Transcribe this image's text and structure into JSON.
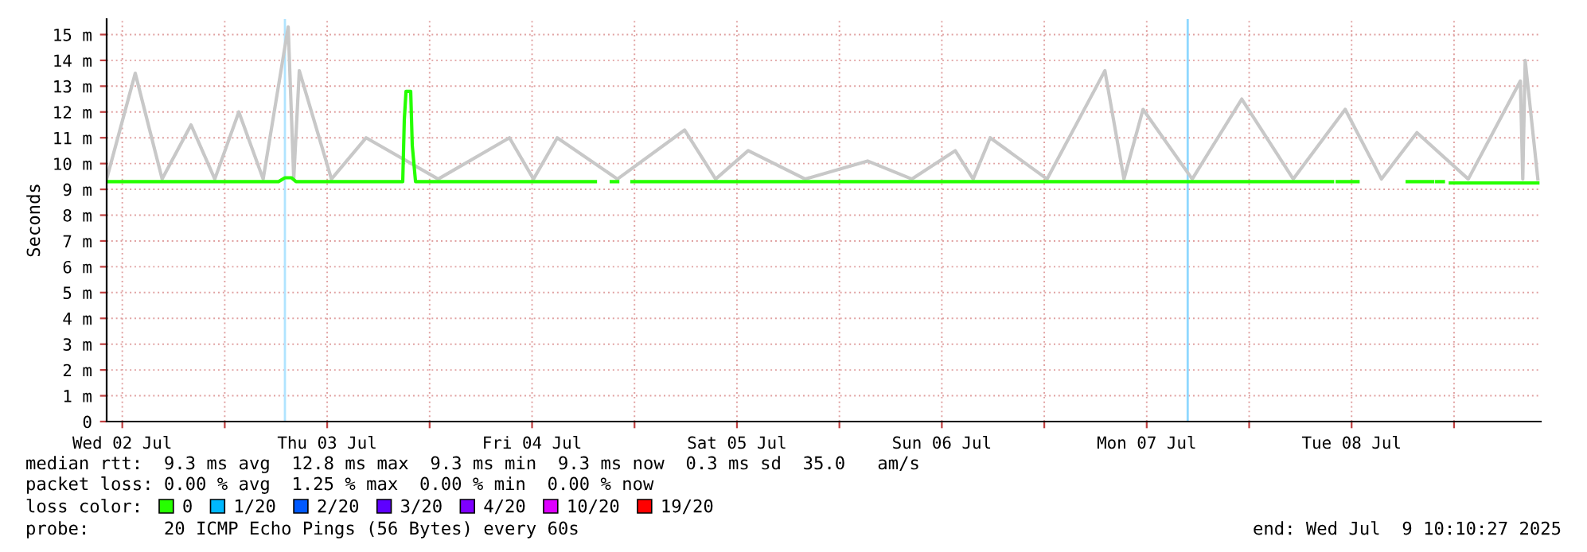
{
  "chart_data": {
    "type": "line",
    "ylabel": "Seconds",
    "xlim": [
      "2025-07-02T10:10",
      "2025-07-09T10:10"
    ],
    "xticks": [
      {
        "value": "2025-07-02T12:00",
        "label": "Wed 02 Jul"
      },
      {
        "value": "2025-07-03T00:00",
        "label": null
      },
      {
        "value": "2025-07-03T12:00",
        "label": "Thu 03 Jul"
      },
      {
        "value": "2025-07-04T00:00",
        "label": null
      },
      {
        "value": "2025-07-04T12:00",
        "label": "Fri 04 Jul"
      },
      {
        "value": "2025-07-05T00:00",
        "label": null
      },
      {
        "value": "2025-07-05T12:00",
        "label": "Sat 05 Jul"
      },
      {
        "value": "2025-07-06T00:00",
        "label": null
      },
      {
        "value": "2025-07-06T12:00",
        "label": "Sun 06 Jul"
      },
      {
        "value": "2025-07-07T00:00",
        "label": null
      },
      {
        "value": "2025-07-07T12:00",
        "label": "Mon 07 Jul"
      },
      {
        "value": "2025-07-08T00:00",
        "label": null
      },
      {
        "value": "2025-07-08T12:00",
        "label": "Tue 08 Jul"
      },
      {
        "value": "2025-07-09T00:00",
        "label": null
      }
    ],
    "ylim": [
      0,
      15.6
    ],
    "yticks": [
      0,
      {
        "value": 1,
        "label": "1 m"
      },
      {
        "value": 2,
        "label": "2 m"
      },
      {
        "value": 3,
        "label": "3 m"
      },
      {
        "value": 4,
        "label": "4 m"
      },
      {
        "value": 5,
        "label": "5 m"
      },
      {
        "value": 6,
        "label": "6 m"
      },
      {
        "value": 7,
        "label": "7 m"
      },
      {
        "value": 8,
        "label": "8 m"
      },
      {
        "value": 9,
        "label": "9 m"
      },
      {
        "value": 10,
        "label": "10 m"
      },
      {
        "value": 11,
        "label": "11 m"
      },
      {
        "value": 12,
        "label": "12 m"
      },
      {
        "value": 13,
        "label": "13 m"
      },
      {
        "value": 14,
        "label": "14 m"
      },
      {
        "value": 15,
        "label": "15 m"
      }
    ],
    "grid": true,
    "legend": "bottom",
    "legend_title": "loss color:",
    "series": [
      {
        "color": "#c8c8c8",
        "x": [
          "2025-07-02T10:10",
          "2025-07-02T13:31",
          "2025-07-02T16:40",
          "2025-07-02T20:03",
          "2025-07-02T22:50",
          "2025-07-03T01:39",
          "2025-07-03T04:30",
          "2025-07-03T07:26",
          "2025-07-03T08:05",
          "2025-07-03T08:44",
          "2025-07-03T12:30",
          "2025-07-03T16:34",
          "2025-07-04T01:00",
          "2025-07-04T09:21",
          "2025-07-04T12:10",
          "2025-07-04T14:57",
          "2025-07-04T22:00",
          "2025-07-05T05:52",
          "2025-07-05T09:30",
          "2025-07-05T13:19",
          "2025-07-05T20:00",
          "2025-07-06T03:18",
          "2025-07-06T08:30",
          "2025-07-06T13:34",
          "2025-07-06T15:40",
          "2025-07-06T17:40",
          "2025-07-07T00:20",
          "2025-07-07T07:06",
          "2025-07-07T09:20",
          "2025-07-07T11:34",
          "2025-07-07T17:20",
          "2025-07-07T23:08",
          "2025-07-08T05:10",
          "2025-07-08T11:15",
          "2025-07-08T15:30",
          "2025-07-08T19:39",
          "2025-07-09T01:40",
          "2025-07-09T07:46",
          "2025-07-09T08:03",
          "2025-07-09T08:20",
          "2025-07-09T09:49"
        ],
        "values": [
          9.4,
          13.5,
          9.4,
          11.5,
          9.4,
          12,
          9.4,
          15.3,
          9.4,
          13.6,
          9.4,
          11,
          9.4,
          11,
          9.4,
          11,
          9.4,
          11.3,
          9.4,
          10.5,
          9.4,
          10.1,
          9.4,
          10.5,
          9.4,
          11,
          9.4,
          13.6,
          9.4,
          12.1,
          9.4,
          12.5,
          9.4,
          12.1,
          9.4,
          11.2,
          9.4,
          13.2,
          9.4,
          14,
          9.4
        ]
      },
      {
        "name": "0",
        "color": "#26ff00",
        "x": [
          "2025-07-02T10:10",
          "2025-07-03T06:18",
          "2025-07-03T07:03",
          "2025-07-03T07:48",
          "2025-07-03T08:21",
          "2025-07-03T20:51",
          "2025-07-03T21:02",
          "2025-07-03T21:14",
          "2025-07-03T21:47",
          "2025-07-03T21:58",
          "2025-07-03T22:21",
          "2025-07-04T19:25",
          "2025-07-04T20:21",
          "2025-07-04T21:17",
          "2025-07-04T22:02",
          "2025-07-04T22:46",
          "2025-07-04T23:42",
          "2025-07-08T09:46",
          "2025-07-08T10:03",
          "2025-07-08T10:19",
          "2025-07-08T12:45",
          "2025-07-08T15:32",
          "2025-07-08T18:31",
          "2025-07-08T21:30",
          "2025-07-08T21:47",
          "2025-07-08T21:58",
          "2025-07-08T22:45",
          "2025-07-08T23:00",
          "2025-07-08T23:34",
          "2025-07-09T09:49"
        ],
        "values": [
          9.3,
          9.3,
          9.45,
          9.45,
          9.3,
          9.3,
          11.7,
          12.8,
          12.8,
          10.7,
          9.3,
          9.3,
          null,
          9.3,
          9.3,
          null,
          9.3,
          9.3,
          null,
          9.3,
          9.3,
          null,
          9.3,
          9.3,
          null,
          9.3,
          9.3,
          null,
          9.25,
          9.25
        ]
      },
      {
        "name": "1/20",
        "color": "#00b8ff"
      },
      {
        "name": "2/20",
        "color": "#0059ff"
      },
      {
        "name": "3/20",
        "color": "#5e00ff"
      },
      {
        "name": "4/20",
        "color": "#7e00ff"
      },
      {
        "name": "10/20",
        "color": "#dd00ff"
      },
      {
        "name": "19/20",
        "color": "#ff0000"
      }
    ],
    "ref_lines": [
      {
        "axis": "x",
        "value": "2025-07-03T07:03",
        "color": "#b0e4ff"
      },
      {
        "axis": "x",
        "value": "2025-07-07T16:48",
        "color": "#8ed8ff"
      }
    ],
    "annotations": [
      "median rtt:  9.3 ms avg  12.8 ms max  9.3 ms min  9.3 ms now  0.3 ms sd  35.0   am/s",
      "packet loss: 0.00 % avg  1.25 % max  0.00 % min  0.00 % now",
      "probe:       20 ICMP Echo Pings (56 Bytes) every 60s",
      "end: Wed Jul  9 10:10:27 2025"
    ]
  }
}
